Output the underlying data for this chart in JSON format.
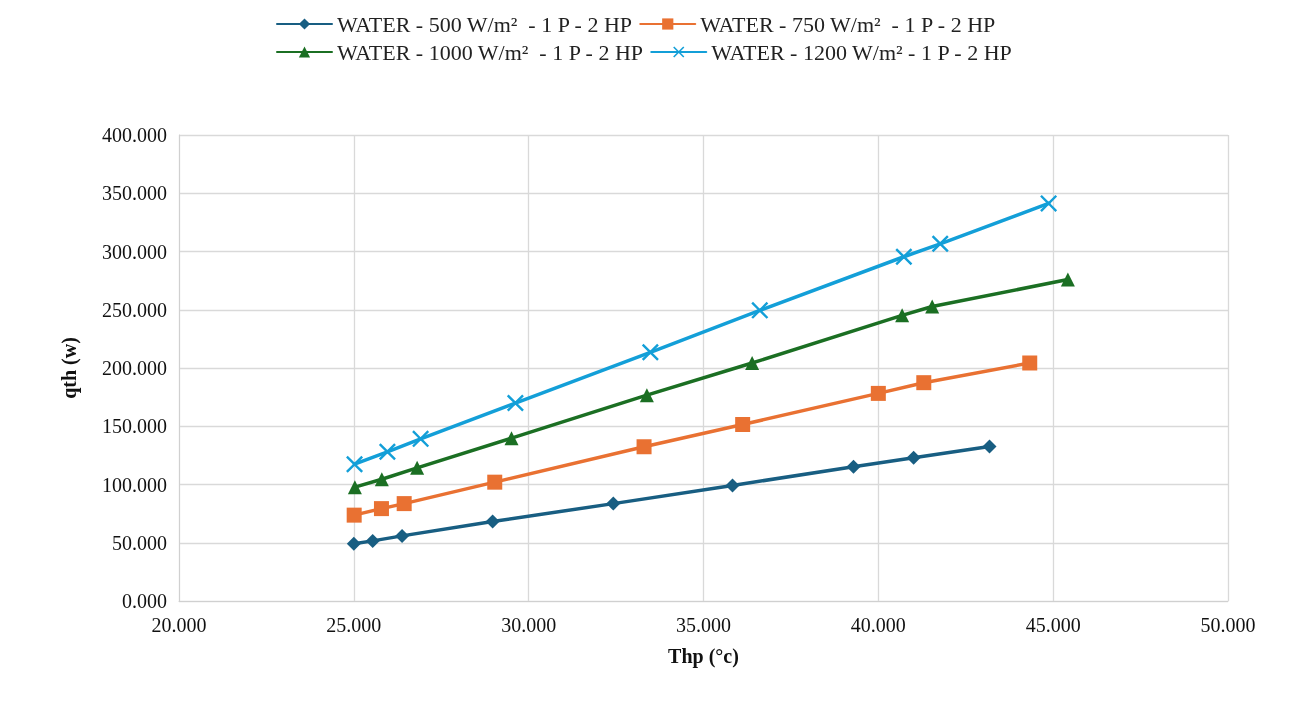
{
  "chart_data": {
    "type": "line",
    "xlabel": "Thp (°c)",
    "ylabel": "qth (w)",
    "xlim": [
      20,
      50
    ],
    "xticks": [
      {
        "value": 20,
        "label": "20.000"
      },
      {
        "value": 25,
        "label": "25.000"
      },
      {
        "value": 30,
        "label": "30.000"
      },
      {
        "value": 35,
        "label": "35.000"
      },
      {
        "value": 40,
        "label": "40.000"
      },
      {
        "value": 45,
        "label": "45.000"
      },
      {
        "value": 50,
        "label": "50.000"
      }
    ],
    "ylim": [
      0,
      400
    ],
    "yticks": [
      {
        "value": 0,
        "label": "0.000"
      },
      {
        "value": 50,
        "label": "50.000"
      },
      {
        "value": 100,
        "label": "100.000"
      },
      {
        "value": 150,
        "label": "150.000"
      },
      {
        "value": 200,
        "label": "200.000"
      },
      {
        "value": 250,
        "label": "250.000"
      },
      {
        "value": 300,
        "label": "300.000"
      },
      {
        "value": 350,
        "label": "350.000"
      },
      {
        "value": 400,
        "label": "400.000"
      }
    ],
    "grid": true,
    "legend": "top",
    "line_style": "solid",
    "series": [
      {
        "name": "WATER - 500 W/m²  - 1 P - 2 HP",
        "color": "#185e82",
        "marker": "diamond",
        "x": [
          25.0,
          25.54,
          26.38,
          28.97,
          32.42,
          35.83,
          39.29,
          41.01,
          43.18
        ],
        "values": [
          49.2,
          51.6,
          55.9,
          68.2,
          83.6,
          99.2,
          115.2,
          122.9,
          132.7
        ]
      },
      {
        "name": "WATER - 750 W/m²  - 1 P - 2 HP",
        "color": "#e97132",
        "marker": "square",
        "x": [
          25.01,
          25.79,
          26.44,
          29.03,
          33.3,
          36.12,
          40.0,
          41.3,
          44.33
        ],
        "values": [
          73.7,
          79.3,
          83.6,
          102.0,
          132.4,
          151.5,
          178.2,
          187.4,
          204.3
        ]
      },
      {
        "name": "WATER - 1000 W/m²  - 1 P - 2 HP",
        "color": "#1b6f23",
        "marker": "triangle",
        "x": [
          25.03,
          25.8,
          26.81,
          29.51,
          33.38,
          36.39,
          40.68,
          41.54,
          45.42
        ],
        "values": [
          97.7,
          104.5,
          114.3,
          139.8,
          176.7,
          204.3,
          245.2,
          252.8,
          275.9
        ]
      },
      {
        "name": "WATER - 1200 W/m² - 1 P - 2 HP",
        "color": "#139fd8",
        "marker": "cross",
        "x": [
          25.02,
          25.96,
          26.91,
          29.62,
          33.48,
          36.61,
          40.73,
          41.77,
          44.87
        ],
        "values": [
          117.4,
          128.1,
          139.2,
          169.9,
          213.5,
          249.5,
          295.5,
          306.6,
          341.3
        ]
      }
    ]
  }
}
